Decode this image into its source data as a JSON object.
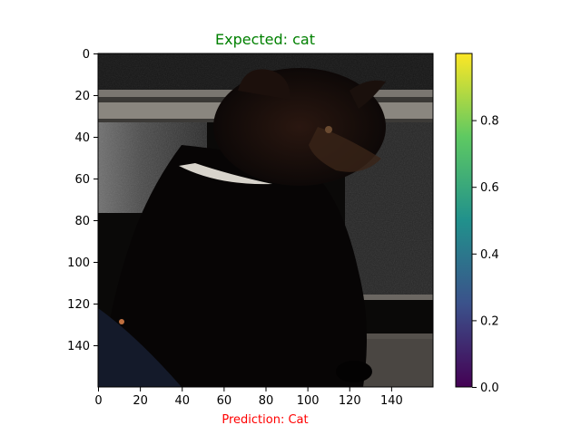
{
  "chart_data": {
    "type": "heatmap",
    "title": "Expected: cat",
    "title_color": "#008000",
    "xlabel": "Prediction: Cat",
    "xlabel_color": "#ff0000",
    "ylabel": "",
    "image_size": [
      160,
      160
    ],
    "xlim": [
      0,
      160
    ],
    "ylim": [
      160,
      0
    ],
    "x_ticks": [
      0,
      20,
      40,
      60,
      80,
      100,
      120,
      140
    ],
    "y_ticks": [
      0,
      20,
      40,
      60,
      80,
      100,
      120,
      140
    ],
    "grid": false,
    "colorbar": {
      "colormap": "viridis",
      "range": [
        0.0,
        1.0
      ],
      "ticks": [
        "0.0",
        "0.2",
        "0.4",
        "0.6",
        "0.8"
      ],
      "tick_values": [
        0.0,
        0.2,
        0.4,
        0.6,
        0.8
      ],
      "stops": [
        "#440154",
        "#3b528b",
        "#21918c",
        "#5ec962",
        "#fde725"
      ]
    }
  }
}
